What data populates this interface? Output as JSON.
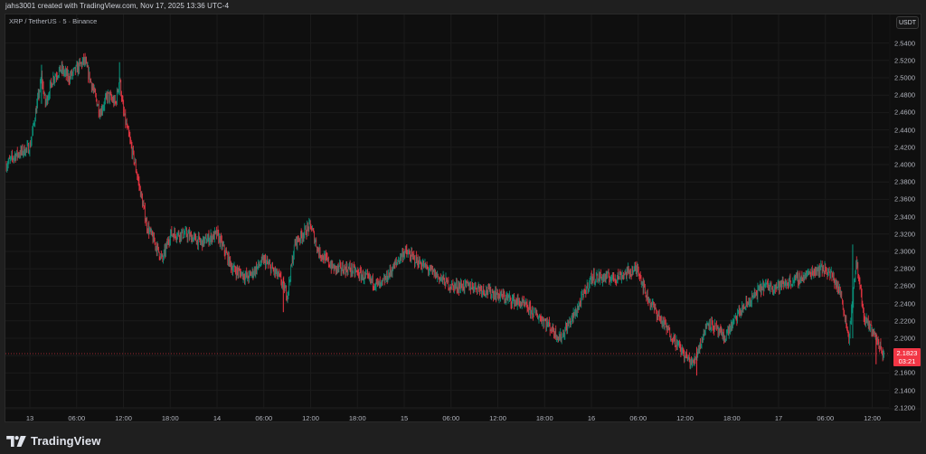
{
  "caption": "jahs3001 created with TradingView.com, Nov 17, 2025 13:36 UTC-4",
  "symbol_title": "XRP / TetherUS · 5 · Binance",
  "currency": "USDT",
  "last_price": {
    "value": "2.1823",
    "countdown": "03:21",
    "color": "#f23645"
  },
  "brand": {
    "name": "TradingView"
  },
  "colors": {
    "up": "#089981",
    "down": "#f23645",
    "background": "#0f0f0f",
    "frame": "#1f1f1f",
    "grid": "#1c1c1c"
  },
  "y_axis": {
    "ticks": [
      "2.5400",
      "2.5200",
      "2.5000",
      "2.4800",
      "2.4600",
      "2.4400",
      "2.4200",
      "2.4000",
      "2.3800",
      "2.3600",
      "2.3400",
      "2.3200",
      "2.3000",
      "2.2800",
      "2.2600",
      "2.2400",
      "2.2200",
      "2.2000",
      "2.1800",
      "2.1600",
      "2.1400",
      "2.1200"
    ]
  },
  "x_axis": {
    "ticks": [
      "13",
      "06:00",
      "12:00",
      "18:00",
      "14",
      "06:00",
      "12:00",
      "18:00",
      "15",
      "06:00",
      "12:00",
      "18:00",
      "16",
      "06:00",
      "12:00",
      "18:00",
      "17",
      "06:00",
      "12:00"
    ]
  },
  "chart_data": {
    "type": "candlestick",
    "title": "XRP / TetherUS · 5 · Binance",
    "interval": "5m",
    "xlabel": "",
    "ylabel": "USDT",
    "ylim": [
      2.12,
      2.56
    ],
    "grid": true,
    "last_price": 2.1823,
    "x_tick_labels": [
      "13",
      "06:00",
      "12:00",
      "18:00",
      "14",
      "06:00",
      "12:00",
      "18:00",
      "15",
      "06:00",
      "12:00",
      "18:00",
      "16",
      "06:00",
      "12:00",
      "18:00",
      "17",
      "06:00",
      "12:00"
    ],
    "y_tick_labels": [
      "2.5400",
      "2.5200",
      "2.5000",
      "2.4800",
      "2.4600",
      "2.4400",
      "2.4200",
      "2.4000",
      "2.3800",
      "2.3600",
      "2.3400",
      "2.3200",
      "2.3000",
      "2.2800",
      "2.2600",
      "2.2400",
      "2.2200",
      "2.2000",
      "2.1800",
      "2.1600",
      "2.1400",
      "2.1200"
    ],
    "price_path": {
      "description": "Approximate close-price keypoints (time label, price) traced from the chart",
      "x": [
        "12 20:00",
        "12 22:00",
        "13 00:00",
        "13 01:30",
        "13 02:00",
        "13 03:00",
        "13 04:00",
        "13 05:00",
        "13 06:00",
        "13 07:00",
        "13 08:00",
        "13 09:00",
        "13 10:00",
        "13 11:00",
        "13 11:30",
        "13 12:00",
        "13 13:30",
        "13 15:00",
        "13 17:00",
        "13 18:00",
        "13 20:00",
        "13 22:00",
        "14 00:00",
        "14 02:00",
        "14 04:00",
        "14 06:00",
        "14 08:00",
        "14 09:00",
        "14 10:00",
        "14 12:00",
        "14 13:00",
        "14 15:00",
        "14 17:00",
        "14 19:00",
        "14 21:00",
        "15 00:00",
        "15 03:00",
        "15 06:00",
        "15 09:00",
        "15 12:00",
        "15 15:00",
        "15 18:00",
        "15 20:00",
        "15 22:00",
        "16 00:00",
        "16 03:00",
        "16 06:00",
        "16 07:00",
        "16 09:00",
        "16 12:00",
        "16 13:00",
        "16 15:00",
        "16 17:00",
        "16 19:00",
        "16 22:00",
        "17 00:00",
        "17 03:00",
        "17 05:00",
        "17 06:00",
        "17 07:00",
        "17 08:00",
        "17 09:00",
        "17 10:00",
        "17 11:00",
        "17 12:00",
        "17 13:30"
      ],
      "values": [
        2.39,
        2.41,
        2.42,
        2.5,
        2.47,
        2.5,
        2.51,
        2.5,
        2.51,
        2.52,
        2.49,
        2.46,
        2.48,
        2.47,
        2.5,
        2.46,
        2.4,
        2.33,
        2.29,
        2.32,
        2.32,
        2.31,
        2.32,
        2.28,
        2.27,
        2.29,
        2.27,
        2.25,
        2.31,
        2.33,
        2.3,
        2.28,
        2.28,
        2.27,
        2.26,
        2.3,
        2.28,
        2.26,
        2.26,
        2.25,
        2.24,
        2.22,
        2.2,
        2.23,
        2.27,
        2.27,
        2.28,
        2.25,
        2.22,
        2.18,
        2.17,
        2.22,
        2.2,
        2.23,
        2.26,
        2.26,
        2.27,
        2.28,
        2.28,
        2.27,
        2.25,
        2.2,
        2.29,
        2.22,
        2.21,
        2.18
      ]
    },
    "notable": {
      "high": 2.525,
      "low": 2.157,
      "spike_17th_morning": 2.308
    }
  }
}
